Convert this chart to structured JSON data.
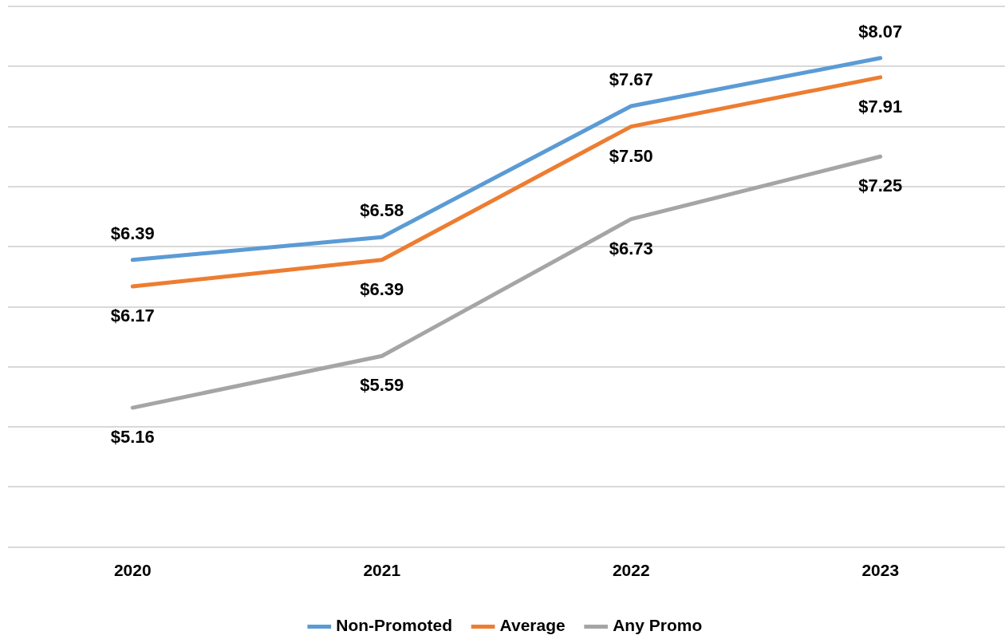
{
  "chart_data": {
    "type": "line",
    "categories": [
      "2020",
      "2021",
      "2022",
      "2023"
    ],
    "series": [
      {
        "name": "Non-Promoted",
        "color": "#5b9bd5",
        "values": [
          6.39,
          6.58,
          7.67,
          8.07
        ],
        "value_labels": [
          "$6.39",
          "$6.58",
          "$7.67",
          "$8.07"
        ]
      },
      {
        "name": "Average",
        "color": "#ed7d31",
        "values": [
          6.17,
          6.39,
          7.5,
          7.91
        ],
        "value_labels": [
          "$6.17",
          "$6.39",
          "$7.50",
          "$7.91"
        ]
      },
      {
        "name": "Any Promo",
        "color": "#a5a5a5",
        "values": [
          5.16,
          5.59,
          6.73,
          7.25
        ],
        "value_labels": [
          "$5.16",
          "$5.59",
          "$6.73",
          "$7.25"
        ]
      }
    ],
    "ylim": [
      4,
      8.5
    ],
    "yticks": [
      {
        "value": 4,
        "label": null
      },
      {
        "value": 4.5,
        "label": null
      },
      {
        "value": 5,
        "label": null
      },
      {
        "value": 5.5,
        "label": null
      },
      {
        "value": 6,
        "label": null
      },
      {
        "value": 6.5,
        "label": null
      },
      {
        "value": 7,
        "label": null
      },
      {
        "value": 7.5,
        "label": null
      },
      {
        "value": 8,
        "label": null
      },
      {
        "value": 8.5,
        "label": null
      }
    ],
    "tick_labels": "x",
    "grid": "y",
    "legend": "bottom",
    "marker": "none",
    "line_style": "solid"
  }
}
